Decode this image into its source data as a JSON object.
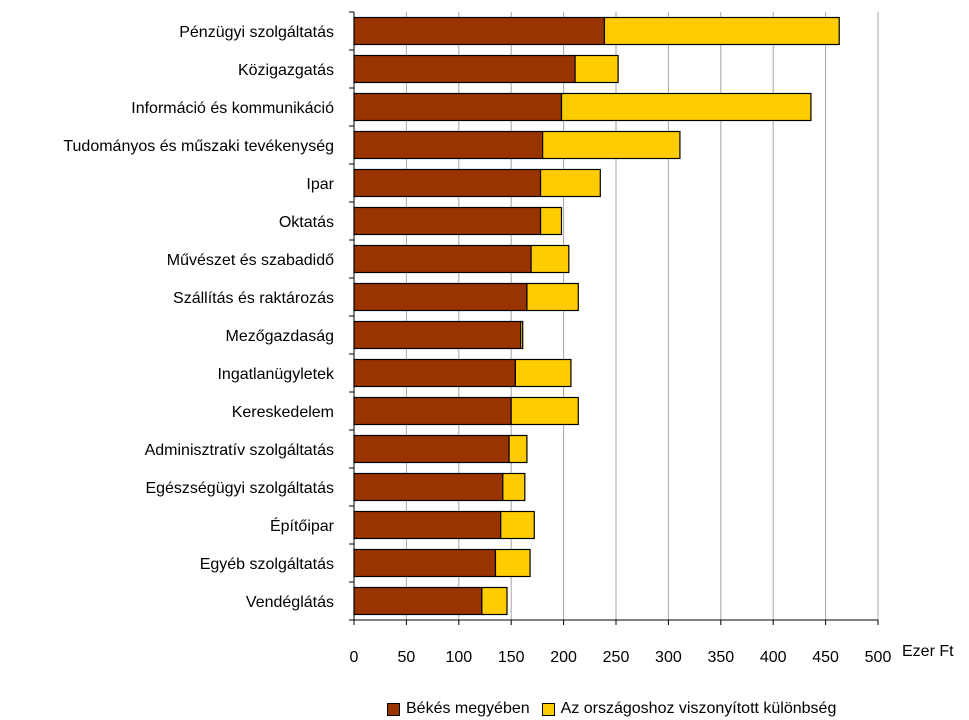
{
  "chart_data": {
    "type": "bar",
    "orientation": "horizontal",
    "stacked": true,
    "categories": [
      "Pénzügyi szolgáltatás",
      "Közigazgatás",
      "Információ és kommunikáció",
      "Tudományos és műszaki tevékenység",
      "Ipar",
      "Oktatás",
      "Művészet és szabadidő",
      "Szállítás és raktározás",
      "Mezőgazdaság",
      "Ingatlanügyletek",
      "Kereskedelem",
      "Adminisztratív szolgáltatás",
      "Egészségügyi szolgáltatás",
      "Építőipar",
      "Egyéb szolgáltatás",
      "Vendéglátás"
    ],
    "series": [
      {
        "name": "Békés megyében",
        "color": "#993300",
        "values": [
          239,
          211,
          198,
          180,
          178,
          178,
          169,
          165,
          159,
          154,
          150,
          148,
          142,
          140,
          135,
          122
        ]
      },
      {
        "name": "Az országoshoz viszonyított különbség",
        "color": "#FFCC00",
        "values": [
          224,
          41,
          238,
          131,
          57,
          20,
          36,
          49,
          2,
          53,
          64,
          17,
          21,
          32,
          33,
          24
        ]
      }
    ],
    "xlim": [
      0,
      500
    ],
    "xticks": [
      0,
      50,
      100,
      150,
      200,
      250,
      300,
      350,
      400,
      450,
      500
    ],
    "xunit": "Ezer Ft",
    "grid": "vertical",
    "legend_position": "bottom"
  }
}
